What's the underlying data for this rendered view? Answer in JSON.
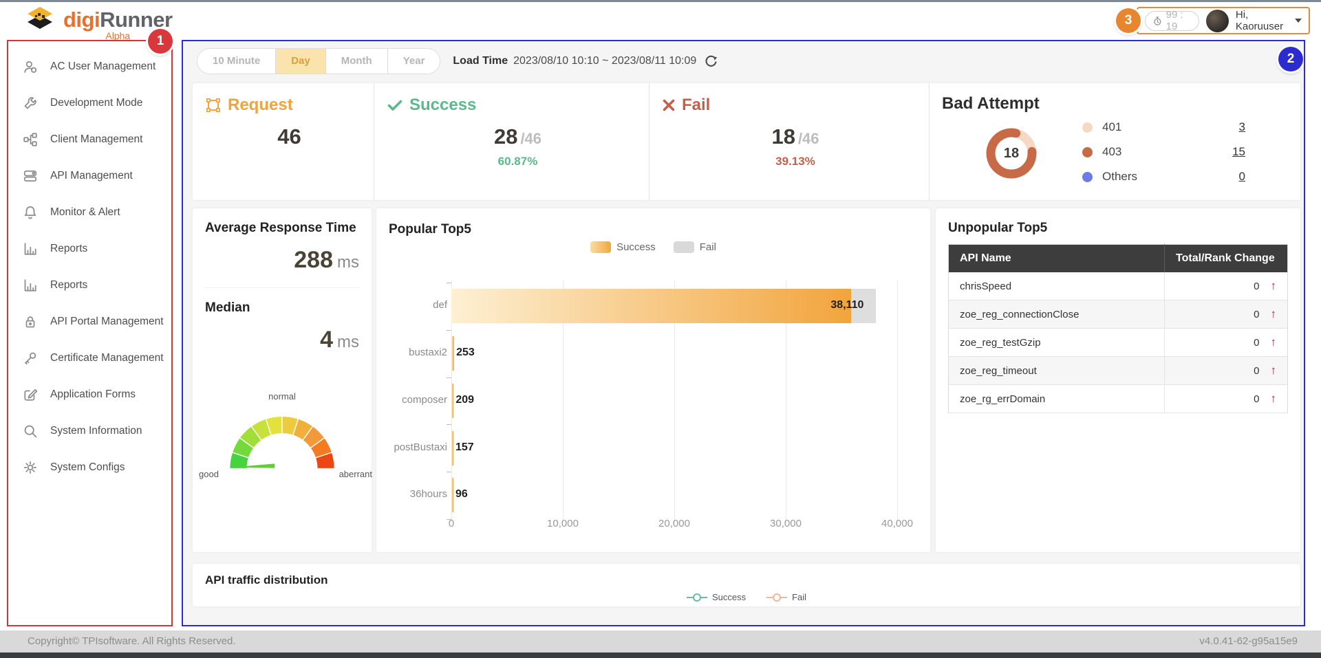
{
  "header": {
    "brand_digi": "digi",
    "brand_runner": "Runner",
    "alpha": "Alpha",
    "timer": "99 : 19",
    "greeting": "Hi, Kaoruuser"
  },
  "badges": {
    "b1": "1",
    "b2": "2",
    "b3": "3"
  },
  "sidebar": {
    "items": [
      {
        "id": "ac-user-management",
        "icon": "people",
        "label": "AC User Management"
      },
      {
        "id": "development-mode",
        "icon": "wrench",
        "label": "Development Mode"
      },
      {
        "id": "client-management",
        "icon": "org",
        "label": "Client Management"
      },
      {
        "id": "api-management",
        "icon": "api",
        "label": "API Management"
      },
      {
        "id": "monitor-alert",
        "icon": "bell",
        "label": "Monitor & Alert"
      },
      {
        "id": "reports",
        "icon": "chart",
        "label": "Reports"
      },
      {
        "id": "reports-2",
        "icon": "chart",
        "label": "Reports"
      },
      {
        "id": "api-portal-management",
        "icon": "lock",
        "label": "API Portal Management"
      },
      {
        "id": "certificate-management",
        "icon": "key",
        "label": "Certificate Management"
      },
      {
        "id": "application-forms",
        "icon": "form",
        "label": "Application Forms"
      },
      {
        "id": "system-information",
        "icon": "search",
        "label": "System Information"
      },
      {
        "id": "system-configs",
        "icon": "gear",
        "label": "System Configs"
      }
    ]
  },
  "toolbar": {
    "tabs": [
      {
        "label": "10 Minute",
        "active": false
      },
      {
        "label": "Day",
        "active": true
      },
      {
        "label": "Month",
        "active": false
      },
      {
        "label": "Year",
        "active": false
      }
    ],
    "load_time_label": "Load Time",
    "load_time_value": "2023/08/10 10:10 ~ 2023/08/11 10:09"
  },
  "stats": {
    "request": {
      "label": "Request",
      "value": "46"
    },
    "success": {
      "label": "Success",
      "value": "28",
      "total": "/46",
      "pct": "60.87%"
    },
    "fail": {
      "label": "Fail",
      "value": "18",
      "total": "/46",
      "pct": "39.13%"
    },
    "bad_attempt": {
      "title": "Bad Attempt"
    }
  },
  "resp": {
    "avg_title": "Average Response Time",
    "avg_value": "288",
    "avg_unit": "ms",
    "median_title": "Median",
    "median_value": "4",
    "median_unit": "ms"
  },
  "unpopular": {
    "title": "Unpopular Top5",
    "columns": [
      "API Name",
      "Total/Rank Change"
    ],
    "arrow": "↑",
    "rows": [
      {
        "name": "chrisSpeed",
        "value": "0"
      },
      {
        "name": "zoe_reg_connectionClose",
        "value": "0"
      },
      {
        "name": "zoe_reg_testGzip",
        "value": "0"
      },
      {
        "name": "zoe_reg_timeout",
        "value": "0"
      },
      {
        "name": "zoe_rg_errDomain",
        "value": "0"
      }
    ]
  },
  "footer": {
    "copyright": "Copyright© TPIsoftware. All Rights Reserved.",
    "version": "v4.0.41-62-g95a15e9"
  },
  "colors": {
    "accent_orange": "#e86f2c",
    "request": "#f0a43e",
    "success": "#59ba8c",
    "fail": "#c4604a",
    "annotation_red": "#d8373c",
    "annotation_blue": "#2b2bd0",
    "annotation_orange": "#e8852f",
    "table_header": "#3d3d3d"
  },
  "chart_data": [
    {
      "type": "bar",
      "orientation": "horizontal",
      "title": "Popular Top5",
      "categories": [
        "def",
        "bustaxi2",
        "composer",
        "postBustaxi",
        "36hours"
      ],
      "series": [
        {
          "name": "Success",
          "values": [
            35860,
            253,
            209,
            157,
            96
          ],
          "color_start": "#fdf0d3",
          "color_end": "#f2a43c"
        },
        {
          "name": "Fail",
          "values": [
            2250,
            0,
            0,
            0,
            0
          ],
          "color": "#dedede"
        }
      ],
      "total_labels": [
        "38,110",
        "253",
        "209",
        "157",
        "96"
      ],
      "xlim": [
        0,
        40000
      ],
      "x_ticks": [
        "0",
        "10,000",
        "20,000",
        "30,000",
        "40,000"
      ],
      "legend": [
        "Success",
        "Fail"
      ],
      "legend_position": "top-center",
      "grid": true
    },
    {
      "type": "donut",
      "title": "Bad Attempt",
      "labels": [
        "401",
        "403",
        "Others"
      ],
      "values": [
        3,
        15,
        0
      ],
      "colors": [
        "#f6d8c4",
        "#c76a48",
        "#6d7be8"
      ],
      "center_total": "18",
      "legend_position": "right"
    },
    {
      "type": "gauge",
      "labels": [
        "good",
        "normal",
        "aberrant"
      ],
      "segment_colors": [
        "#45d33f",
        "#74d93a",
        "#a2de38",
        "#c6e13a",
        "#e3e13c",
        "#eccb3c",
        "#f0b03c",
        "#f2993c",
        "#f47b22",
        "#ee4612"
      ],
      "needle_color": "#5ecf36",
      "needle_position": "low"
    },
    {
      "type": "line",
      "title": "API traffic distribution",
      "legend": [
        {
          "name": "Success",
          "color": "#6db9a4"
        },
        {
          "name": "Fail",
          "color": "#f2b5a0"
        }
      ],
      "legend_position": "top-center"
    }
  ]
}
